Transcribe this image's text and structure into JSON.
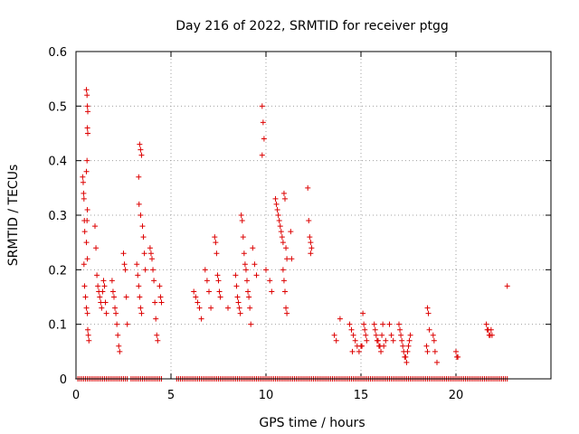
{
  "chart_data": {
    "type": "scatter",
    "title": "Day 216 of 2022, SRMTID for receiver ptgg",
    "xlabel": "GPS time / hours",
    "ylabel": "SRMTID / TECUs",
    "xlim": [
      0,
      25
    ],
    "ylim": [
      0,
      0.6
    ],
    "xticks": [
      0,
      5,
      10,
      15,
      20
    ],
    "yticks": [
      0,
      0.1,
      0.2,
      0.3,
      0.4,
      0.5,
      0.6
    ],
    "xtick_labels": [
      "0",
      "5",
      "10",
      "15",
      "20"
    ],
    "ytick_labels": [
      "0",
      "0.1",
      "0.2",
      "0.3",
      "0.4",
      "0.5",
      "0.6"
    ],
    "grid": true,
    "marker": "+",
    "color": "#dd0000",
    "series": [
      {
        "name": "SRMTID",
        "points": [
          [
            0.35,
            0.37
          ],
          [
            0.38,
            0.36
          ],
          [
            0.4,
            0.34
          ],
          [
            0.42,
            0.33
          ],
          [
            0.44,
            0.29
          ],
          [
            0.46,
            0.27
          ],
          [
            0.42,
            0.21
          ],
          [
            0.45,
            0.17
          ],
          [
            0.5,
            0.15
          ],
          [
            0.55,
            0.13
          ],
          [
            0.6,
            0.12
          ],
          [
            0.55,
            0.53
          ],
          [
            0.58,
            0.52
          ],
          [
            0.6,
            0.5
          ],
          [
            0.62,
            0.49
          ],
          [
            0.6,
            0.46
          ],
          [
            0.62,
            0.45
          ],
          [
            0.58,
            0.4
          ],
          [
            0.55,
            0.38
          ],
          [
            0.6,
            0.31
          ],
          [
            0.58,
            0.29
          ],
          [
            0.55,
            0.25
          ],
          [
            0.6,
            0.22
          ],
          [
            0.62,
            0.09
          ],
          [
            0.65,
            0.08
          ],
          [
            0.68,
            0.07
          ],
          [
            1.0,
            0.28
          ],
          [
            1.05,
            0.24
          ],
          [
            1.1,
            0.19
          ],
          [
            1.15,
            0.17
          ],
          [
            1.2,
            0.16
          ],
          [
            1.25,
            0.15
          ],
          [
            1.3,
            0.14
          ],
          [
            1.35,
            0.13
          ],
          [
            1.4,
            0.16
          ],
          [
            1.45,
            0.18
          ],
          [
            1.5,
            0.17
          ],
          [
            1.55,
            0.14
          ],
          [
            1.6,
            0.12
          ],
          [
            1.9,
            0.18
          ],
          [
            1.95,
            0.16
          ],
          [
            2.0,
            0.15
          ],
          [
            2.05,
            0.13
          ],
          [
            2.1,
            0.12
          ],
          [
            2.15,
            0.1
          ],
          [
            2.2,
            0.08
          ],
          [
            2.25,
            0.06
          ],
          [
            2.3,
            0.05
          ],
          [
            2.5,
            0.23
          ],
          [
            2.55,
            0.21
          ],
          [
            2.6,
            0.2
          ],
          [
            2.65,
            0.15
          ],
          [
            2.7,
            0.1
          ],
          [
            3.2,
            0.21
          ],
          [
            3.25,
            0.19
          ],
          [
            3.3,
            0.17
          ],
          [
            3.35,
            0.15
          ],
          [
            3.4,
            0.13
          ],
          [
            3.45,
            0.12
          ],
          [
            3.35,
            0.43
          ],
          [
            3.4,
            0.42
          ],
          [
            3.45,
            0.41
          ],
          [
            3.3,
            0.37
          ],
          [
            3.32,
            0.32
          ],
          [
            3.4,
            0.3
          ],
          [
            3.5,
            0.28
          ],
          [
            3.55,
            0.26
          ],
          [
            3.6,
            0.23
          ],
          [
            3.65,
            0.2
          ],
          [
            3.9,
            0.24
          ],
          [
            3.95,
            0.23
          ],
          [
            4.0,
            0.22
          ],
          [
            4.05,
            0.2
          ],
          [
            4.1,
            0.18
          ],
          [
            4.15,
            0.14
          ],
          [
            4.2,
            0.11
          ],
          [
            4.25,
            0.08
          ],
          [
            4.3,
            0.07
          ],
          [
            4.4,
            0.17
          ],
          [
            4.45,
            0.15
          ],
          [
            4.5,
            0.14
          ],
          [
            6.2,
            0.16
          ],
          [
            6.3,
            0.15
          ],
          [
            6.4,
            0.14
          ],
          [
            6.5,
            0.13
          ],
          [
            6.6,
            0.11
          ],
          [
            6.8,
            0.2
          ],
          [
            6.9,
            0.18
          ],
          [
            7.0,
            0.16
          ],
          [
            7.1,
            0.13
          ],
          [
            7.3,
            0.26
          ],
          [
            7.35,
            0.25
          ],
          [
            7.4,
            0.23
          ],
          [
            7.45,
            0.19
          ],
          [
            7.5,
            0.18
          ],
          [
            7.55,
            0.16
          ],
          [
            7.6,
            0.15
          ],
          [
            8.0,
            0.13
          ],
          [
            8.4,
            0.19
          ],
          [
            8.45,
            0.17
          ],
          [
            8.5,
            0.15
          ],
          [
            8.55,
            0.14
          ],
          [
            8.6,
            0.13
          ],
          [
            8.65,
            0.12
          ],
          [
            8.7,
            0.3
          ],
          [
            8.75,
            0.29
          ],
          [
            8.8,
            0.26
          ],
          [
            8.85,
            0.23
          ],
          [
            8.9,
            0.21
          ],
          [
            8.95,
            0.2
          ],
          [
            9.0,
            0.18
          ],
          [
            9.05,
            0.16
          ],
          [
            9.1,
            0.15
          ],
          [
            9.15,
            0.13
          ],
          [
            9.2,
            0.1
          ],
          [
            9.3,
            0.24
          ],
          [
            9.4,
            0.21
          ],
          [
            9.5,
            0.19
          ],
          [
            9.8,
            0.5
          ],
          [
            9.85,
            0.47
          ],
          [
            9.9,
            0.44
          ],
          [
            9.8,
            0.41
          ],
          [
            10.0,
            0.2
          ],
          [
            10.2,
            0.18
          ],
          [
            10.3,
            0.16
          ],
          [
            10.5,
            0.33
          ],
          [
            10.55,
            0.32
          ],
          [
            10.6,
            0.31
          ],
          [
            10.65,
            0.3
          ],
          [
            10.7,
            0.29
          ],
          [
            10.75,
            0.28
          ],
          [
            10.8,
            0.27
          ],
          [
            10.85,
            0.26
          ],
          [
            10.9,
            0.25
          ],
          [
            10.95,
            0.34
          ],
          [
            11.0,
            0.33
          ],
          [
            11.05,
            0.24
          ],
          [
            11.1,
            0.22
          ],
          [
            10.9,
            0.2
          ],
          [
            10.95,
            0.18
          ],
          [
            11.0,
            0.16
          ],
          [
            11.05,
            0.13
          ],
          [
            11.1,
            0.12
          ],
          [
            11.3,
            0.27
          ],
          [
            11.35,
            0.22
          ],
          [
            12.2,
            0.35
          ],
          [
            12.25,
            0.29
          ],
          [
            12.3,
            0.26
          ],
          [
            12.35,
            0.25
          ],
          [
            12.4,
            0.24
          ],
          [
            12.35,
            0.23
          ],
          [
            13.6,
            0.08
          ],
          [
            13.7,
            0.07
          ],
          [
            13.9,
            0.11
          ],
          [
            14.4,
            0.1
          ],
          [
            14.5,
            0.09
          ],
          [
            14.6,
            0.08
          ],
          [
            14.7,
            0.07
          ],
          [
            14.8,
            0.06
          ],
          [
            14.9,
            0.05
          ],
          [
            14.55,
            0.05
          ],
          [
            15.1,
            0.12
          ],
          [
            15.15,
            0.1
          ],
          [
            15.2,
            0.09
          ],
          [
            15.25,
            0.08
          ],
          [
            15.3,
            0.07
          ],
          [
            15.0,
            0.06
          ],
          [
            15.05,
            0.06
          ],
          [
            15.7,
            0.1
          ],
          [
            15.75,
            0.09
          ],
          [
            15.8,
            0.08
          ],
          [
            15.85,
            0.07
          ],
          [
            15.9,
            0.07
          ],
          [
            15.95,
            0.06
          ],
          [
            16.0,
            0.06
          ],
          [
            16.05,
            0.05
          ],
          [
            16.1,
            0.08
          ],
          [
            16.15,
            0.1
          ],
          [
            16.2,
            0.06
          ],
          [
            16.3,
            0.07
          ],
          [
            16.5,
            0.1
          ],
          [
            16.6,
            0.08
          ],
          [
            16.7,
            0.07
          ],
          [
            17.0,
            0.1
          ],
          [
            17.05,
            0.09
          ],
          [
            17.1,
            0.08
          ],
          [
            17.15,
            0.07
          ],
          [
            17.2,
            0.06
          ],
          [
            17.25,
            0.05
          ],
          [
            17.3,
            0.04
          ],
          [
            17.35,
            0.04
          ],
          [
            17.4,
            0.03
          ],
          [
            17.45,
            0.05
          ],
          [
            17.5,
            0.06
          ],
          [
            17.55,
            0.07
          ],
          [
            17.6,
            0.08
          ],
          [
            18.5,
            0.13
          ],
          [
            18.55,
            0.12
          ],
          [
            18.6,
            0.09
          ],
          [
            18.45,
            0.06
          ],
          [
            18.5,
            0.05
          ],
          [
            18.8,
            0.08
          ],
          [
            18.85,
            0.07
          ],
          [
            18.9,
            0.05
          ],
          [
            19.0,
            0.03
          ],
          [
            20.0,
            0.05
          ],
          [
            20.05,
            0.04
          ],
          [
            20.1,
            0.04
          ],
          [
            21.6,
            0.1
          ],
          [
            21.65,
            0.09
          ],
          [
            21.7,
            0.09
          ],
          [
            21.75,
            0.08
          ],
          [
            21.8,
            0.08
          ],
          [
            21.85,
            0.09
          ],
          [
            21.9,
            0.08
          ],
          [
            22.7,
            0.17
          ]
        ]
      },
      {
        "name": "zero",
        "x_range": [
          0.1,
          22.7
        ],
        "step": 0.1,
        "y": 0,
        "gaps": [
          [
            2.7,
            2.9
          ],
          [
            4.5,
            5.3
          ]
        ]
      }
    ]
  }
}
